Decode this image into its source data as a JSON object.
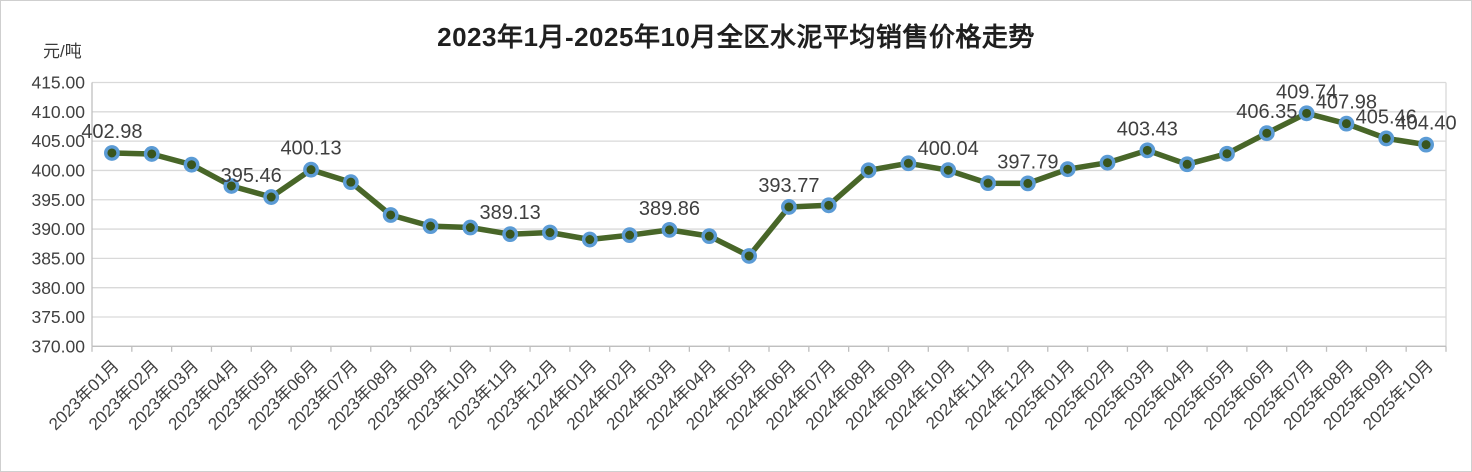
{
  "page": {
    "title": "2023年1月-2025年10月全区水泥平均销售价格走势",
    "unit_label": "元/吨"
  },
  "chart_data": {
    "type": "line",
    "title": "2023年1月-2025年10月全区水泥平均销售价格走势",
    "ylabel": "元/吨",
    "xlabel": "",
    "legend": false,
    "grid": true,
    "ylim": [
      370,
      415
    ],
    "y_tick_step": 5,
    "y_tick_labels": [
      "415.00",
      "410.00",
      "405.00",
      "400.00",
      "395.00",
      "390.00",
      "385.00",
      "380.00",
      "375.00",
      "370.00"
    ],
    "categories": [
      "2023年01月",
      "2023年02月",
      "2023年03月",
      "2023年04月",
      "2023年05月",
      "2023年06月",
      "2023年07月",
      "2023年08月",
      "2023年09月",
      "2023年10月",
      "2023年11月",
      "2023年12月",
      "2024年01月",
      "2024年02月",
      "2024年03月",
      "2024年04月",
      "2024年05月",
      "2024年06月",
      "2024年07月",
      "2024年08月",
      "2024年09月",
      "2024年10月",
      "2024年11月",
      "2024年12月",
      "2025年01月",
      "2025年02月",
      "2025年03月",
      "2025年04月",
      "2025年05月",
      "2025年06月",
      "2025年07月",
      "2025年08月",
      "2025年09月",
      "2025年10月"
    ],
    "values": [
      402.98,
      402.81,
      400.98,
      397.35,
      395.46,
      400.13,
      398.0,
      392.4,
      390.5,
      390.26,
      389.13,
      389.41,
      388.21,
      388.96,
      389.86,
      388.79,
      385.41,
      393.77,
      394.05,
      400.02,
      401.22,
      400.04,
      397.83,
      397.79,
      400.21,
      401.32,
      403.43,
      401.05,
      402.85,
      406.35,
      409.74,
      407.98,
      405.46,
      404.4
    ],
    "point_labels": {
      "0": "402.98",
      "4": "395.46",
      "5": "400.13",
      "10": "389.13",
      "14": "389.86",
      "17": "393.77",
      "21": "400.04",
      "23": "397.79",
      "26": "403.43",
      "29": "406.35",
      "30": "409.74",
      "31": "407.98",
      "32": "405.46",
      "33": "404.40"
    },
    "point_label_dx": {
      "4": -20
    },
    "colors": {
      "line": "#486628",
      "marker_fill": "#39551d",
      "marker_ring": "#5b9bd5",
      "gridline": "#d9d9d9",
      "axis": "#bfbfbf",
      "text": "#404040"
    }
  }
}
